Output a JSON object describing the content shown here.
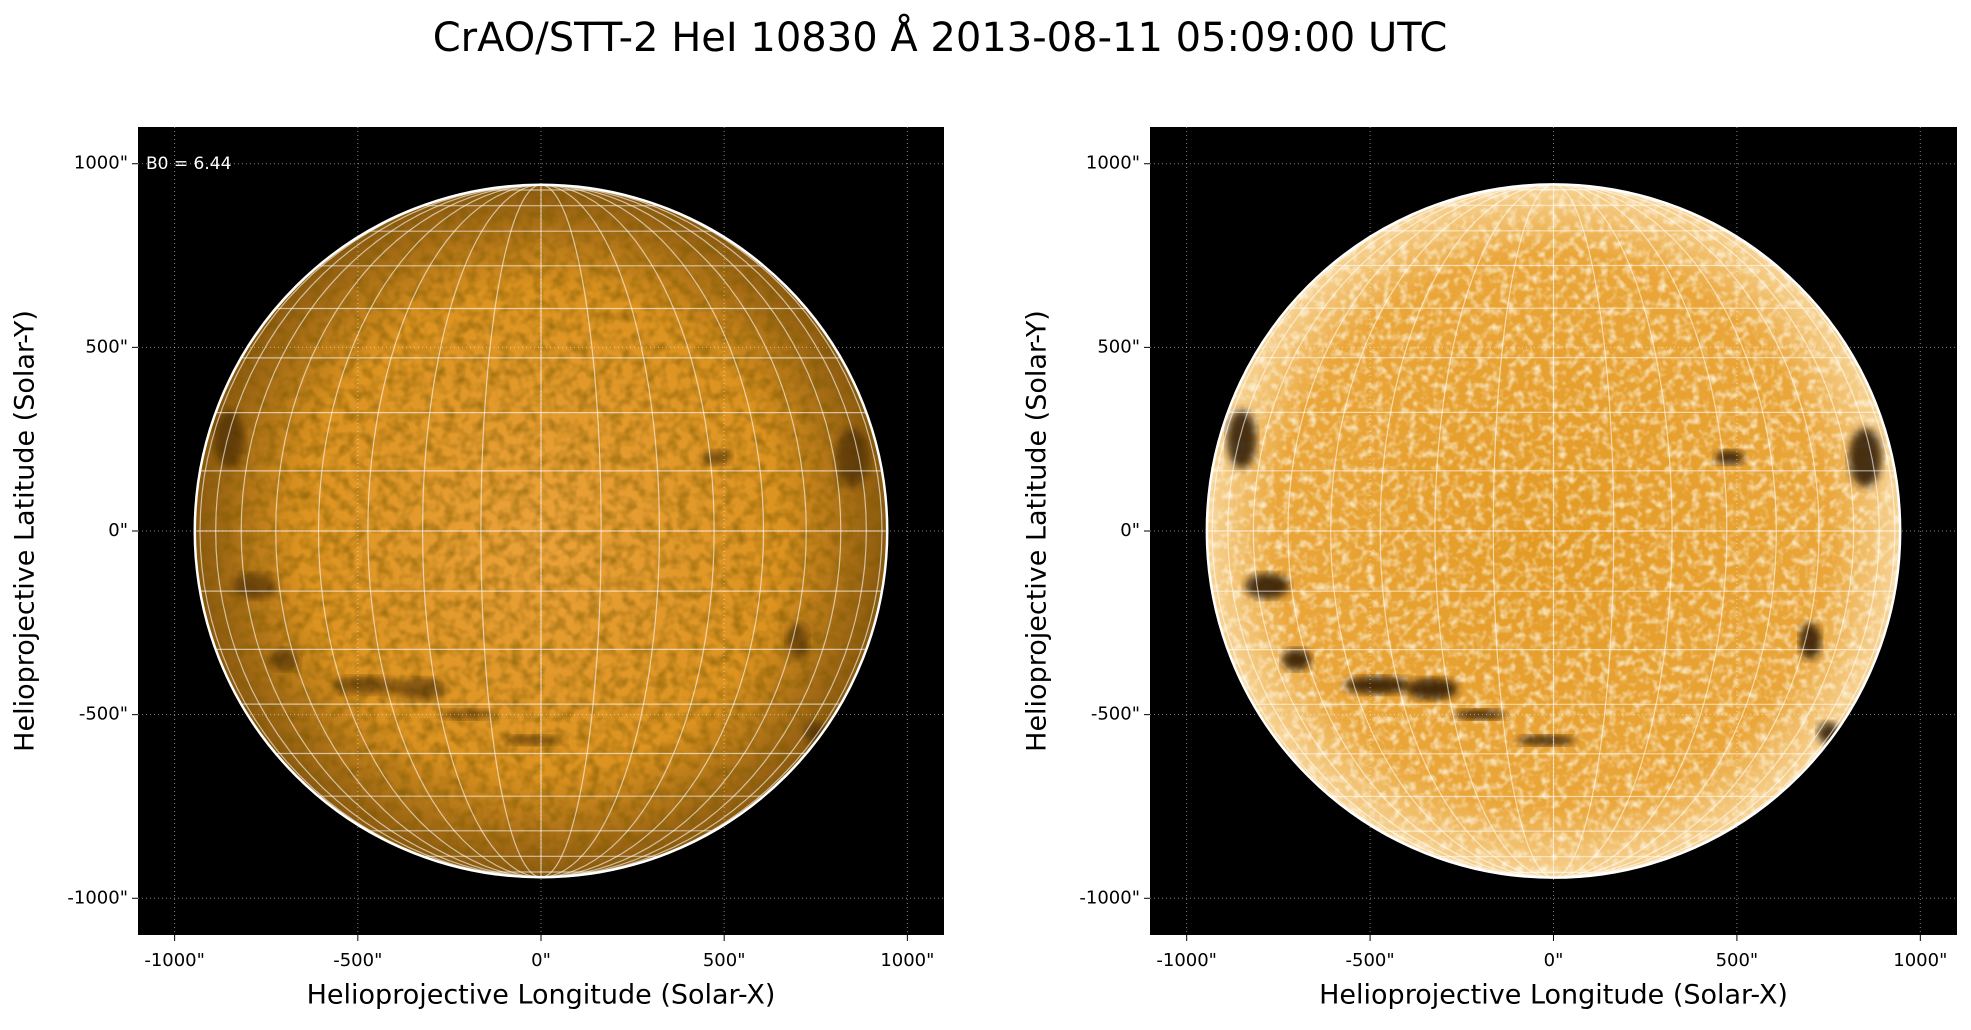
{
  "title": "CrAO/STT-2 HeI 10830 Å 2013-08-11 05:09:00 UTC",
  "chart_data": [
    {
      "type": "image",
      "xlabel": "Helioprojective Longitude (Solar-X)",
      "ylabel": "Helioprojective Latitude (Solar-Y)",
      "annotation": "B0 = 6.44",
      "style": "normal",
      "xlim": [
        -1100,
        1100
      ],
      "ylim": [
        -1100,
        1100
      ],
      "xticks": [
        {
          "value": -1000,
          "label": "-1000\""
        },
        {
          "value": -500,
          "label": "-500\""
        },
        {
          "value": 0,
          "label": "0\""
        },
        {
          "value": 500,
          "label": "500\""
        },
        {
          "value": 1000,
          "label": "1000\""
        }
      ],
      "yticks": [
        {
          "value": -1000,
          "label": "-1000\""
        },
        {
          "value": -500,
          "label": "-500\""
        },
        {
          "value": 0,
          "label": "0\""
        },
        {
          "value": 500,
          "label": "500\""
        },
        {
          "value": 1000,
          "label": "1000\""
        }
      ],
      "grid": true
    },
    {
      "type": "image",
      "xlabel": "Helioprojective Longitude (Solar-X)",
      "ylabel": "Helioprojective Latitude (Solar-Y)",
      "style": "enhanced",
      "xlim": [
        -1100,
        1100
      ],
      "ylim": [
        -1100,
        1100
      ],
      "xticks": [
        {
          "value": -1000,
          "label": "-1000\""
        },
        {
          "value": -500,
          "label": "-500\""
        },
        {
          "value": 0,
          "label": "0\""
        },
        {
          "value": 500,
          "label": "500\""
        },
        {
          "value": 1000,
          "label": "1000\""
        }
      ],
      "yticks": [
        {
          "value": -1000,
          "label": "-1000\""
        },
        {
          "value": -500,
          "label": "-500\""
        },
        {
          "value": 0,
          "label": "0\""
        },
        {
          "value": 500,
          "label": "500\""
        },
        {
          "value": 1000,
          "label": "1000\""
        }
      ],
      "grid": true
    }
  ]
}
